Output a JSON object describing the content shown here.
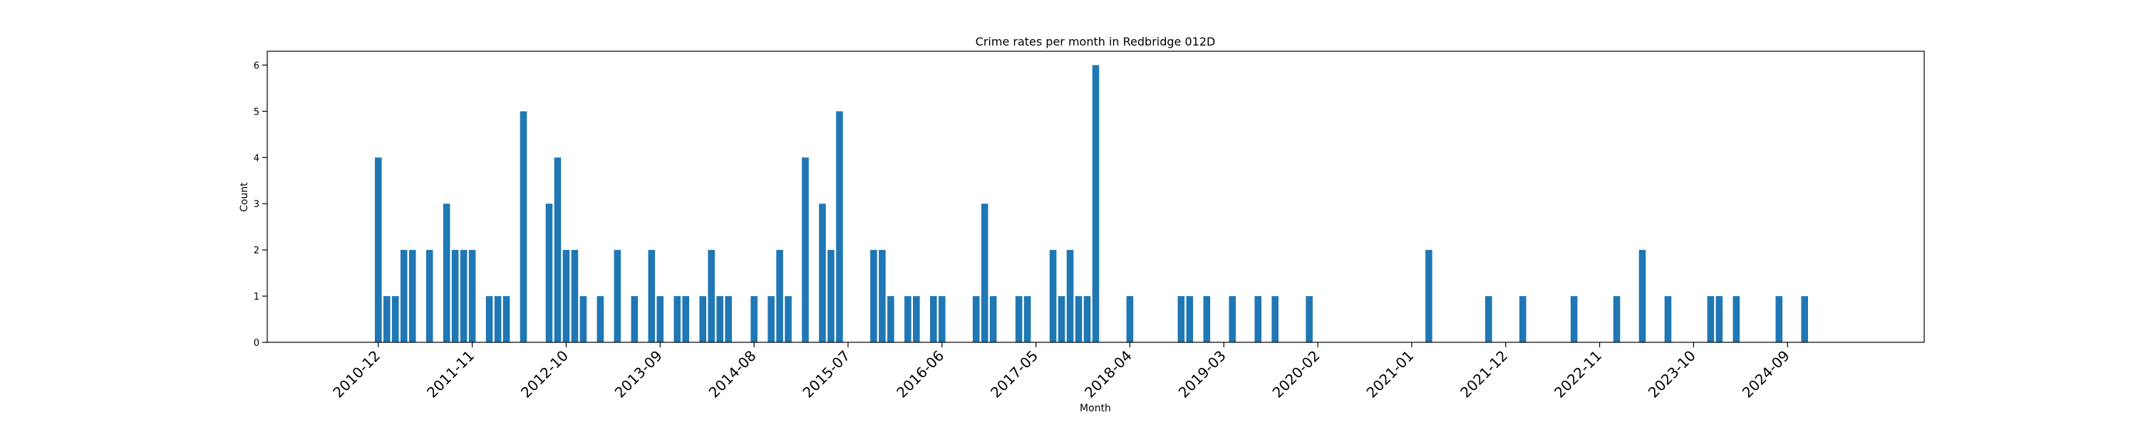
{
  "chart_data": {
    "type": "bar",
    "title": "Crime rates per month in Redbridge 012D",
    "xlabel": "Month",
    "ylabel": "Count",
    "ylim": [
      0,
      6.3
    ],
    "yticks": [
      0,
      1,
      2,
      3,
      4,
      5,
      6
    ],
    "xlim": [
      "2009-11",
      "2026-01"
    ],
    "xticks": [
      "2010-12",
      "2011-11",
      "2012-10",
      "2013-09",
      "2014-08",
      "2015-07",
      "2016-06",
      "2017-05",
      "2018-04",
      "2019-03",
      "2020-02",
      "2021-01",
      "2021-12",
      "2022-11",
      "2023-10",
      "2024-09"
    ],
    "bar_color": "#1f77b4",
    "grid": false,
    "legend": "none",
    "months": [
      "2010-12",
      "2011-01",
      "2011-02",
      "2011-03",
      "2011-04",
      "2011-06",
      "2011-08",
      "2011-09",
      "2011-10",
      "2011-11",
      "2012-01",
      "2012-02",
      "2012-03",
      "2012-05",
      "2012-08",
      "2012-09",
      "2012-10",
      "2012-11",
      "2012-12",
      "2013-02",
      "2013-04",
      "2013-06",
      "2013-08",
      "2013-09",
      "2013-11",
      "2013-12",
      "2014-02",
      "2014-03",
      "2014-04",
      "2014-05",
      "2014-08",
      "2014-10",
      "2014-11",
      "2014-12",
      "2015-02",
      "2015-04",
      "2015-05",
      "2015-06",
      "2015-10",
      "2015-11",
      "2015-12",
      "2016-02",
      "2016-03",
      "2016-05",
      "2016-06",
      "2016-10",
      "2016-11",
      "2016-12",
      "2017-03",
      "2017-04",
      "2017-07",
      "2017-08",
      "2017-09",
      "2017-10",
      "2017-11",
      "2017-12",
      "2018-04",
      "2018-10",
      "2018-11",
      "2019-01",
      "2019-04",
      "2019-07",
      "2019-09",
      "2020-01",
      "2021-03",
      "2021-10",
      "2022-02",
      "2022-08",
      "2023-01",
      "2023-04",
      "2023-07",
      "2023-12",
      "2024-01",
      "2024-03",
      "2024-08",
      "2024-11"
    ],
    "values": [
      4,
      1,
      1,
      2,
      2,
      2,
      3,
      2,
      2,
      2,
      1,
      1,
      1,
      5,
      3,
      4,
      2,
      2,
      1,
      1,
      2,
      1,
      2,
      1,
      1,
      1,
      1,
      2,
      1,
      1,
      1,
      1,
      2,
      1,
      4,
      3,
      2,
      5,
      2,
      2,
      1,
      1,
      1,
      1,
      1,
      1,
      3,
      1,
      1,
      1,
      2,
      1,
      2,
      1,
      1,
      6,
      1,
      1,
      1,
      1,
      1,
      1,
      1,
      1,
      2,
      1,
      1,
      1,
      1,
      2,
      1,
      1,
      1,
      1,
      1,
      1
    ]
  }
}
